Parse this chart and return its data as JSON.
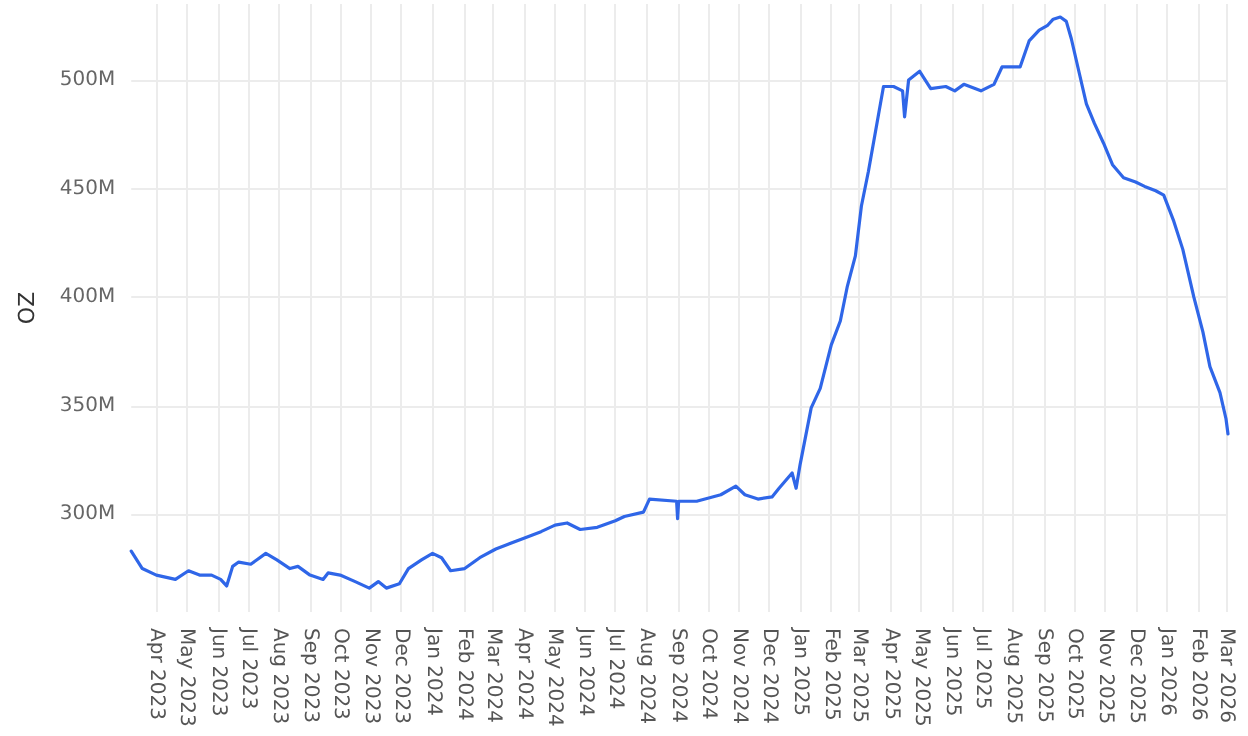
{
  "chart_data": {
    "type": "line",
    "ylabel": "OZ",
    "x": [
      "2023-03-07",
      "2023-03-18",
      "2023-04-01",
      "2023-04-20",
      "2023-05-03",
      "2023-05-14",
      "2023-05-26",
      "2023-06-04",
      "2023-06-10",
      "2023-06-16",
      "2023-06-22",
      "2023-07-04",
      "2023-07-19",
      "2023-07-30",
      "2023-08-12",
      "2023-08-20",
      "2023-09-01",
      "2023-09-14",
      "2023-09-19",
      "2023-10-01",
      "2023-10-16",
      "2023-10-30",
      "2023-11-08",
      "2023-11-16",
      "2023-11-29",
      "2023-12-08",
      "2023-12-21",
      "2024-01-01",
      "2024-01-10",
      "2024-01-19",
      "2024-02-02",
      "2024-02-17",
      "2024-03-04",
      "2024-03-15",
      "2024-04-01",
      "2024-04-18",
      "2024-05-02",
      "2024-05-14",
      "2024-05-27",
      "2024-06-13",
      "2024-07-01",
      "2024-07-10",
      "2024-07-29",
      "2024-08-04",
      "2024-08-31",
      "2024-09-01",
      "2024-09-02",
      "2024-09-20",
      "2024-10-14",
      "2024-10-29",
      "2024-11-07",
      "2024-11-20",
      "2024-12-04",
      "2024-12-11",
      "2024-12-24",
      "2024-12-28",
      "2025-01-01",
      "2025-01-12",
      "2025-01-21",
      "2025-02-01",
      "2025-02-10",
      "2025-02-17",
      "2025-02-25",
      "2025-03-03",
      "2025-03-10",
      "2025-03-20",
      "2025-03-25",
      "2025-04-04",
      "2025-04-13",
      "2025-04-15",
      "2025-04-19",
      "2025-04-30",
      "2025-05-11",
      "2025-05-26",
      "2025-06-04",
      "2025-06-13",
      "2025-06-30",
      "2025-07-13",
      "2025-07-21",
      "2025-08-08",
      "2025-08-17",
      "2025-08-27",
      "2025-09-04",
      "2025-09-10",
      "2025-09-17",
      "2025-09-23",
      "2025-09-28",
      "2025-10-06",
      "2025-10-13",
      "2025-10-21",
      "2025-10-30",
      "2025-11-08",
      "2025-11-19",
      "2025-12-01",
      "2025-12-10",
      "2025-12-21",
      "2025-12-29",
      "2026-01-08",
      "2026-01-17",
      "2026-01-28",
      "2026-02-06",
      "2026-02-13",
      "2026-02-23",
      "2026-03-01",
      "2026-03-03"
    ],
    "series": [
      {
        "color": "#2f66e8",
        "values": [
          283,
          275,
          272,
          270,
          274,
          272,
          272,
          270,
          267,
          276,
          278,
          277,
          282,
          279,
          275,
          276,
          272,
          270,
          273,
          272,
          269,
          266,
          269,
          266,
          268,
          275,
          279,
          282,
          280,
          274,
          275,
          280,
          284,
          286,
          289,
          292,
          295,
          296,
          293,
          294,
          297,
          299,
          301,
          307,
          306,
          298,
          306,
          306,
          309,
          313,
          309,
          307,
          308,
          312,
          319,
          312,
          323,
          349,
          358,
          378,
          389,
          405,
          419,
          442,
          458,
          484,
          497,
          497,
          495,
          483,
          500,
          504,
          496,
          497,
          495,
          498,
          495,
          498,
          506,
          506,
          518,
          523,
          525,
          528,
          529,
          527,
          519,
          503,
          489,
          480,
          471,
          461,
          455,
          453,
          451,
          449,
          447,
          435,
          422,
          400,
          384,
          368,
          356,
          344,
          337
        ]
      }
    ],
    "xlim": [
      "2023-03-07",
      "2026-03-03"
    ],
    "xticks": [
      {
        "value": "2023-04",
        "label": "Apr 2023"
      },
      {
        "value": "2023-05",
        "label": "May 2023"
      },
      {
        "value": "2023-06",
        "label": "Jun 2023"
      },
      {
        "value": "2023-07",
        "label": "Jul 2023"
      },
      {
        "value": "2023-08",
        "label": "Aug 2023"
      },
      {
        "value": "2023-09",
        "label": "Sep 2023"
      },
      {
        "value": "2023-10",
        "label": "Oct 2023"
      },
      {
        "value": "2023-11",
        "label": "Nov 2023"
      },
      {
        "value": "2023-12",
        "label": "Dec 2023"
      },
      {
        "value": "2024-01",
        "label": "Jan 2024"
      },
      {
        "value": "2024-02",
        "label": "Feb 2024"
      },
      {
        "value": "2024-03",
        "label": "Mar 2024"
      },
      {
        "value": "2024-04",
        "label": "Apr 2024"
      },
      {
        "value": "2024-05",
        "label": "May 2024"
      },
      {
        "value": "2024-06",
        "label": "Jun 2024"
      },
      {
        "value": "2024-07",
        "label": "Jul 2024"
      },
      {
        "value": "2024-08",
        "label": "Aug 2024"
      },
      {
        "value": "2024-09",
        "label": "Sep 2024"
      },
      {
        "value": "2024-10",
        "label": "Oct 2024"
      },
      {
        "value": "2024-11",
        "label": "Nov 2024"
      },
      {
        "value": "2024-12",
        "label": "Dec 2024"
      },
      {
        "value": "2025-01",
        "label": "Jan 2025"
      },
      {
        "value": "2025-02",
        "label": "Feb 2025"
      },
      {
        "value": "2025-03",
        "label": "Mar 2025"
      },
      {
        "value": "2025-04",
        "label": "Apr 2025"
      },
      {
        "value": "2025-05",
        "label": "May 2025"
      },
      {
        "value": "2025-06",
        "label": "Jun 2025"
      },
      {
        "value": "2025-07",
        "label": "Jul 2025"
      },
      {
        "value": "2025-08",
        "label": "Aug 2025"
      },
      {
        "value": "2025-09",
        "label": "Sep 2025"
      },
      {
        "value": "2025-10",
        "label": "Oct 2025"
      },
      {
        "value": "2025-11",
        "label": "Nov 2025"
      },
      {
        "value": "2025-12",
        "label": "Dec 2025"
      },
      {
        "value": "2026-01",
        "label": "Jan 2026"
      },
      {
        "value": "2026-02",
        "label": "Feb 2026"
      },
      {
        "value": "2026-03",
        "label": "Mar 2026"
      }
    ],
    "ylim": [
      255,
      535
    ],
    "yticks": [
      {
        "value": 300,
        "label": "300M"
      },
      {
        "value": 350,
        "label": "350M"
      },
      {
        "value": 400,
        "label": "400M"
      },
      {
        "value": 450,
        "label": "450M"
      },
      {
        "value": 500,
        "label": "500M"
      }
    ],
    "grid": true,
    "marker": "none",
    "line_style": "solid"
  }
}
